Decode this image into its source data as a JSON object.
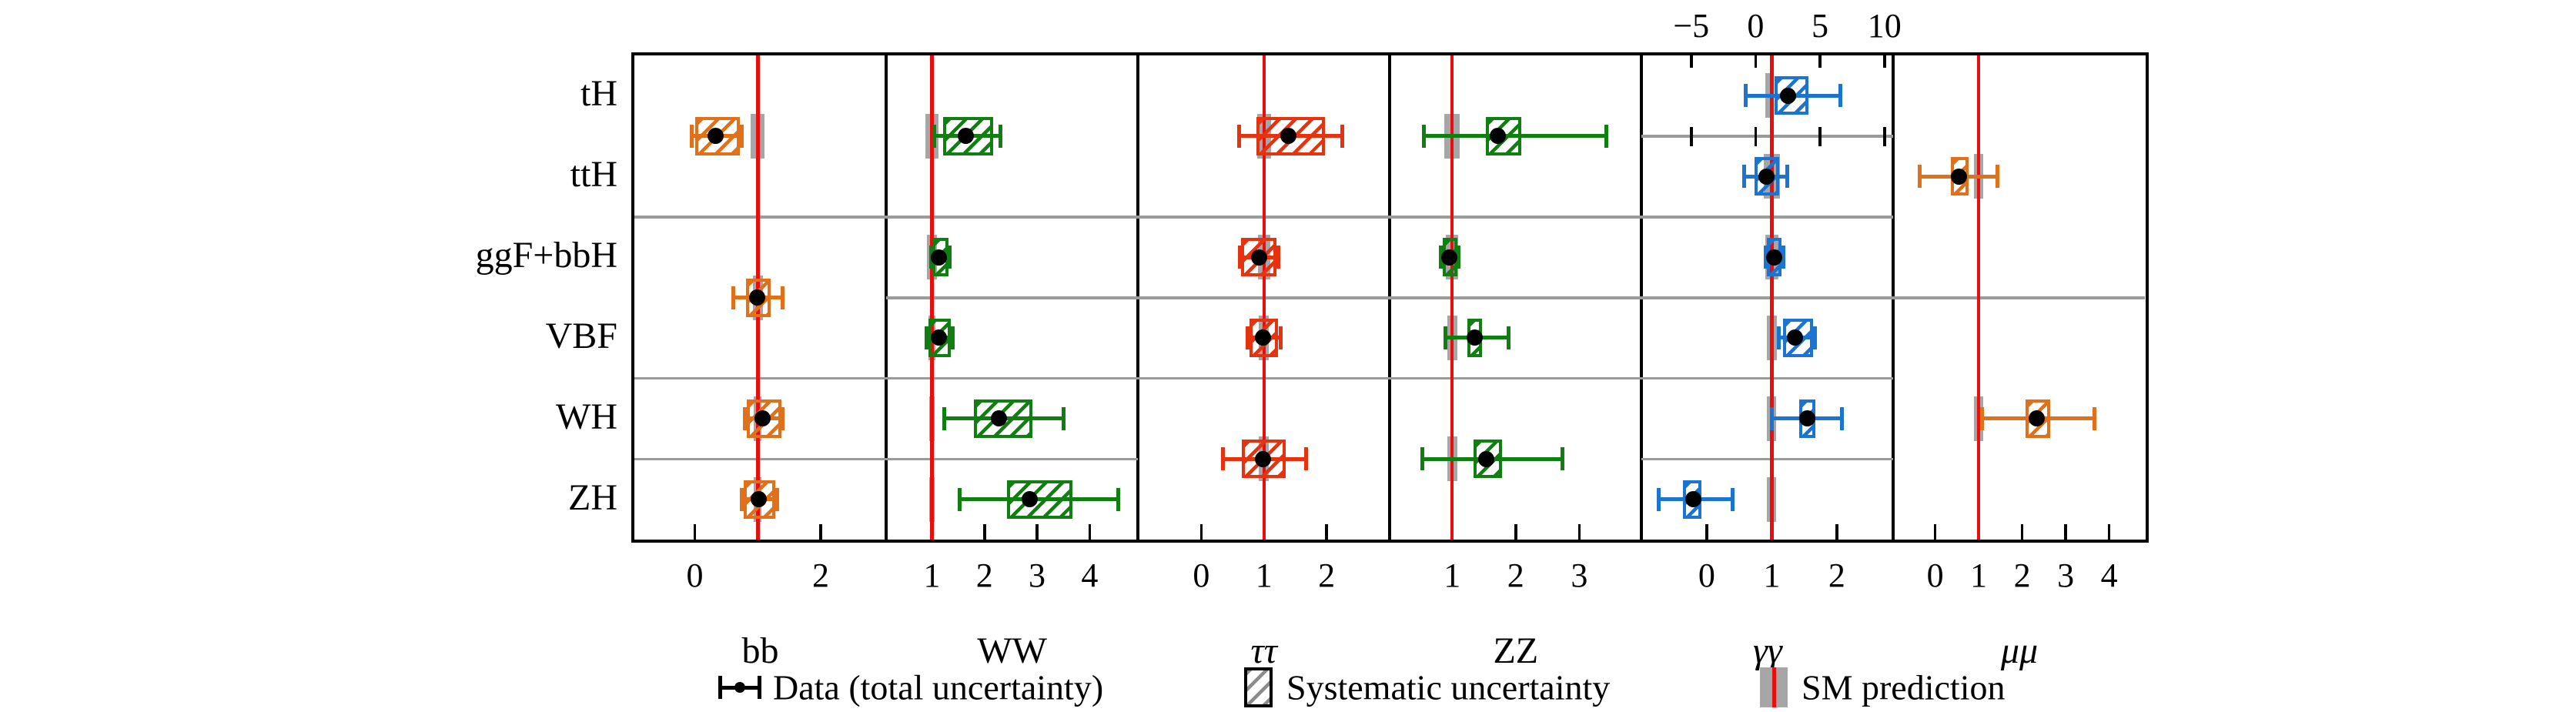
{
  "figure": {
    "description": "Grid of Higgs boson signal-strength measurements: production modes (rows) vs decay channels (columns)",
    "row_labels": [
      "tH",
      "ttH",
      "ggF+bbH",
      "VBF",
      "WH",
      "ZH"
    ],
    "legend": {
      "data_label": "Data (total uncertainty)",
      "syst_label": "Systematic uncertainty",
      "sm_label": "SM prediction"
    },
    "colors": {
      "orange": "#E0701A",
      "green": "#107E10",
      "red": "#E5330F",
      "blue": "#1B74D1",
      "sm_line": "#EA0D0D",
      "sm_band": "#A6A6A6",
      "separator": "#9B9B9B",
      "legend_hatch": "#8C8C8C"
    }
  },
  "chart_data": {
    "type": "scatter",
    "subtype": "errorbar-grid",
    "title": "",
    "ylabel_rows": [
      "tH",
      "ttH",
      "ggF+bbH",
      "VBF",
      "WH",
      "ZH"
    ],
    "sm_reference_value": 1,
    "grid_on": false,
    "legend_position": "bottom",
    "note": "points = measured rate / SM prediction; total error bars, hatched systematic boxes, gray SM prediction bands; merged cells span multiple production rows",
    "panels": [
      {
        "decay": "bb",
        "label": "bb",
        "italic": false,
        "color_key": "orange",
        "xrange": [
          -0.96,
          3.04
        ],
        "ticks": [
          0,
          2
        ],
        "tick_labels": [
          "0",
          "2"
        ],
        "separators": [
          2,
          4,
          5
        ],
        "points": [
          {
            "rows": [
              0,
              1
            ],
            "cell": "ttH+tH",
            "value": 0.33,
            "total": [
              -0.05,
              0.74
            ],
            "syst": [
              0.0,
              0.72
            ],
            "sm": 0.11
          },
          {
            "rows": [
              2,
              3
            ],
            "cell": "ggF+bbH+VBF",
            "value": 0.99,
            "total": [
              0.61,
              1.4
            ],
            "syst": [
              0.81,
              1.21
            ],
            "sm": 0.08
          },
          {
            "rows": [
              4,
              4
            ],
            "cell": "WH",
            "value": 1.08,
            "total": [
              0.79,
              1.4
            ],
            "syst": [
              0.82,
              1.38
            ],
            "sm": 0.06
          },
          {
            "rows": [
              5,
              5
            ],
            "cell": "ZH",
            "value": 1.02,
            "total": [
              0.75,
              1.31
            ],
            "syst": [
              0.78,
              1.28
            ],
            "sm": 0.06
          }
        ]
      },
      {
        "decay": "WW",
        "label": "WW",
        "italic": false,
        "color_key": "green",
        "xrange": [
          0.13,
          4.92
        ],
        "ticks": [
          1,
          2,
          3,
          4
        ],
        "tick_labels": [
          "1",
          "2",
          "3",
          "4"
        ],
        "separators": [
          2,
          3,
          4,
          5
        ],
        "points": [
          {
            "rows": [
              0,
              1
            ],
            "cell": "ttH+tH",
            "value": 1.65,
            "total": [
              1.04,
              2.31
            ],
            "syst": [
              1.21,
              2.16
            ],
            "sm": 0.12
          },
          {
            "rows": [
              2,
              2
            ],
            "cell": "ggF+bbH",
            "value": 1.13,
            "total": [
              0.98,
              1.33
            ],
            "syst": [
              1.01,
              1.31
            ],
            "sm": 0.1
          },
          {
            "rows": [
              3,
              3
            ],
            "cell": "VBF",
            "value": 1.13,
            "total": [
              0.9,
              1.4
            ],
            "syst": [
              0.94,
              1.36
            ],
            "sm": 0.06
          },
          {
            "rows": [
              4,
              4
            ],
            "cell": "WH",
            "value": 2.27,
            "total": [
              1.24,
              3.5
            ],
            "syst": [
              1.8,
              2.91
            ],
            "sm": 0.05
          },
          {
            "rows": [
              5,
              5
            ],
            "cell": "ZH",
            "value": 2.86,
            "total": [
              1.53,
              4.55
            ],
            "syst": [
              2.43,
              3.67
            ],
            "sm": 0.05
          }
        ]
      },
      {
        "decay": "tautau",
        "label": "ττ",
        "italic": true,
        "color_key": "red",
        "xrange": [
          -1.01,
          3.01
        ],
        "ticks": [
          0,
          1,
          2
        ],
        "tick_labels": [
          "0",
          "1",
          "2"
        ],
        "separators": [
          2,
          3,
          4
        ],
        "points": [
          {
            "rows": [
              0,
              1
            ],
            "cell": "ttH+tH",
            "value": 1.39,
            "total": [
              0.61,
              2.25
            ],
            "syst": [
              0.88,
              1.97
            ],
            "sm": 0.11
          },
          {
            "rows": [
              2,
              2
            ],
            "cell": "ggF+bbH",
            "value": 0.92,
            "total": [
              0.62,
              1.23
            ],
            "syst": [
              0.64,
              1.2
            ],
            "sm": 0.1
          },
          {
            "rows": [
              3,
              3
            ],
            "cell": "VBF",
            "value": 0.99,
            "total": [
              0.74,
              1.27
            ],
            "syst": [
              0.77,
              1.23
            ],
            "sm": 0.08
          },
          {
            "rows": [
              4,
              5
            ],
            "cell": "WH+ZH",
            "value": 0.99,
            "total": [
              0.35,
              1.67
            ],
            "syst": [
              0.65,
              1.35
            ],
            "sm": 0.08
          }
        ]
      },
      {
        "decay": "ZZ",
        "label": "ZZ",
        "italic": false,
        "color_key": "green",
        "xrange": [
          0.02,
          3.98
        ],
        "ticks": [
          1,
          2,
          3
        ],
        "tick_labels": [
          "1",
          "2",
          "3"
        ],
        "separators": [
          2,
          3,
          4
        ],
        "points": [
          {
            "rows": [
              0,
              1
            ],
            "cell": "ttH+tH",
            "value": 1.72,
            "total": [
              0.55,
              3.43
            ],
            "syst": [
              1.53,
              2.09
            ],
            "sm": 0.12
          },
          {
            "rows": [
              2,
              2
            ],
            "cell": "ggF+bbH",
            "value": 0.95,
            "total": [
              0.82,
              1.1
            ],
            "syst": [
              0.85,
              1.08
            ],
            "sm": 0.1
          },
          {
            "rows": [
              3,
              3
            ],
            "cell": "VBF",
            "value": 1.36,
            "total": [
              0.9,
              1.89
            ],
            "syst": [
              1.24,
              1.47
            ],
            "sm": 0.08
          },
          {
            "rows": [
              4,
              5
            ],
            "cell": "WH+ZH",
            "value": 1.54,
            "total": [
              0.53,
              2.73
            ],
            "syst": [
              1.34,
              1.79
            ],
            "sm": 0.08
          }
        ]
      },
      {
        "decay": "gammagamma",
        "label": "γγ",
        "italic": true,
        "color_key": "blue",
        "xrange": [
          -1.0,
          2.87
        ],
        "ticks": [
          0,
          1,
          2
        ],
        "tick_labels": [
          "0",
          "1",
          "2"
        ],
        "separators": [
          1,
          2,
          3,
          4,
          5
        ],
        "top_axis": {
          "range": [
            -8.85,
            10.7
          ],
          "ticks": [
            -5,
            0,
            5,
            10
          ],
          "tick_labels": [
            "−5",
            "0",
            "5",
            "10"
          ],
          "mini_axis_boundary": 1
        },
        "points": [
          {
            "rows": [
              0,
              0
            ],
            "cell": "tH",
            "scale": "top",
            "value": 2.5,
            "total": [
              -0.8,
              6.6
            ],
            "syst": [
              1.5,
              4.1
            ],
            "sm": 0.25
          },
          {
            "rows": [
              1,
              1
            ],
            "cell": "ttH",
            "value": 0.92,
            "total": [
              0.58,
              1.24
            ],
            "syst": [
              0.73,
              1.11
            ],
            "sm": 0.12
          },
          {
            "rows": [
              2,
              2
            ],
            "cell": "ggF+bbH",
            "value": 1.04,
            "total": [
              0.91,
              1.18
            ],
            "syst": [
              0.93,
              1.15
            ],
            "sm": 0.1
          },
          {
            "rows": [
              3,
              3
            ],
            "cell": "VBF",
            "value": 1.36,
            "total": [
              1.11,
              1.67
            ],
            "syst": [
              1.17,
              1.63
            ],
            "sm": 0.08
          },
          {
            "rows": [
              4,
              4
            ],
            "cell": "WH",
            "value": 1.54,
            "total": [
              1.0,
              2.08
            ],
            "syst": [
              1.42,
              1.67
            ],
            "sm": 0.07
          },
          {
            "rows": [
              5,
              5
            ],
            "cell": "ZH",
            "value": -0.2,
            "total": [
              -0.74,
              0.4
            ],
            "syst": [
              -0.37,
              -0.08
            ],
            "sm": 0.07
          }
        ]
      },
      {
        "decay": "mumu",
        "label": "μμ",
        "italic": true,
        "color_key": "orange",
        "xrange": [
          -0.96,
          4.83
        ],
        "ticks": [
          0,
          1,
          2,
          3,
          4
        ],
        "tick_labels": [
          "0",
          "1",
          "2",
          "3",
          "4"
        ],
        "separators": [
          3
        ],
        "points": [
          {
            "rows": [
              0,
              2
            ],
            "cell": "ggF+bbH+ttH+tH",
            "value": 0.55,
            "total": [
              -0.35,
              1.44
            ],
            "syst": [
              0.36,
              0.76
            ],
            "sm": 0.11
          },
          {
            "rows": [
              3,
              5
            ],
            "cell": "VBF+WH+ZH",
            "value": 2.34,
            "total": [
              1.08,
              3.67
            ],
            "syst": [
              2.08,
              2.65
            ],
            "sm": 0.1
          }
        ]
      }
    ]
  }
}
